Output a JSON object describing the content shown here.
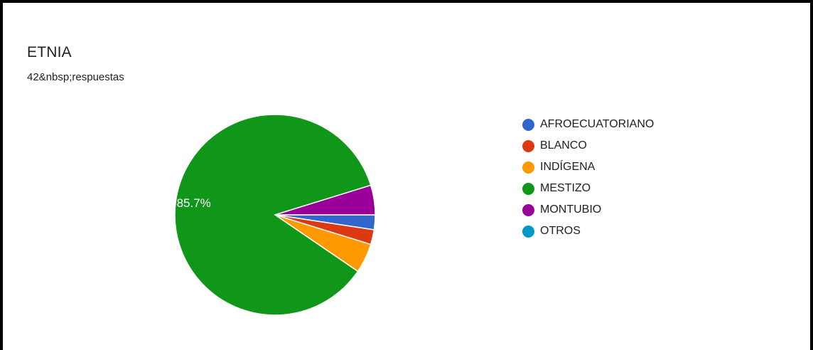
{
  "card": {
    "title": "ETNIA",
    "subtitle": "42&nbsp;respuestas"
  },
  "chart_data": {
    "type": "pie",
    "total": 42,
    "categories": [
      "AFROECUATORIANO",
      "BLANCO",
      "INDÍGENA",
      "MESTIZO",
      "MONTUBIO",
      "OTROS"
    ],
    "values": [
      1,
      1,
      2,
      36,
      2,
      0
    ],
    "percent_labels": [
      "",
      "",
      "",
      "85.7%",
      "",
      ""
    ],
    "colors": [
      "#3366cc",
      "#dc3912",
      "#ff9900",
      "#109618",
      "#990099",
      "#0099c6"
    ],
    "legend_position": "right"
  }
}
